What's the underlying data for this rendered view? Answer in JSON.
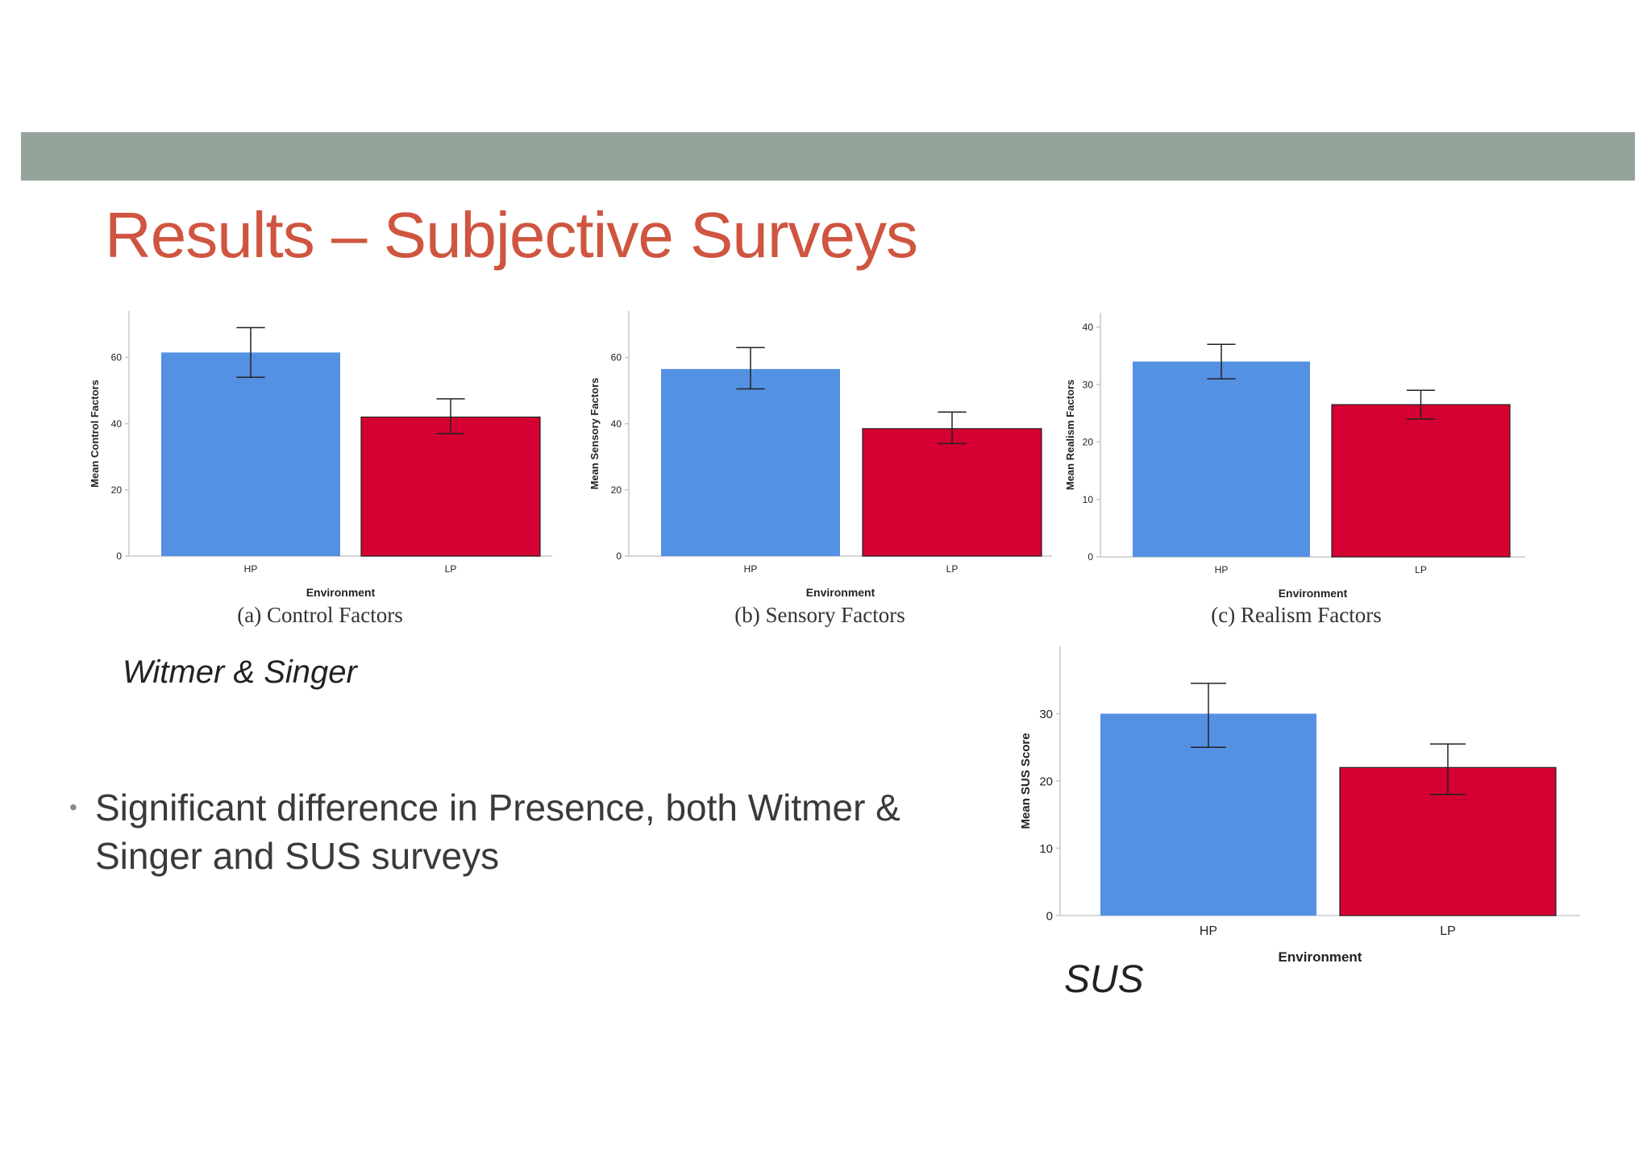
{
  "slide": {
    "title": "Results – Subjective Surveys",
    "ws_label": "Witmer & Singer",
    "sus_label": "SUS",
    "bullets": [
      "Significant difference in Presence, both Witmer & Singer and SUS surveys"
    ],
    "colors": {
      "title": "#cf5540",
      "top_bar": "#93a399",
      "hp": "#5591e3",
      "lp": "#d50032"
    }
  },
  "chart_data": [
    {
      "type": "bar",
      "caption": "(a) Control Factors",
      "categories": [
        "HP",
        "LP"
      ],
      "values": [
        61.5,
        42
      ],
      "error_low": [
        54,
        37
      ],
      "error_high": [
        69,
        47.5
      ],
      "xlabel": "Environment",
      "ylabel": "Mean Control Factors",
      "ylim": [
        0,
        74
      ],
      "yticks": [
        "0",
        "20",
        "40",
        "60"
      ]
    },
    {
      "type": "bar",
      "caption": "(b) Sensory Factors",
      "categories": [
        "HP",
        "LP"
      ],
      "values": [
        56.5,
        38.5
      ],
      "error_low": [
        50.5,
        34
      ],
      "error_high": [
        63,
        43.5
      ],
      "xlabel": "Environment",
      "ylabel": "Mean Sensory Factors",
      "ylim": [
        0,
        74
      ],
      "yticks": [
        "0",
        "20",
        "40",
        "60"
      ]
    },
    {
      "type": "bar",
      "caption": "(c) Realism Factors",
      "categories": [
        "HP",
        "LP"
      ],
      "values": [
        34,
        26.5
      ],
      "error_low": [
        31,
        24
      ],
      "error_high": [
        37,
        29
      ],
      "xlabel": "Environment",
      "ylabel": "Mean Realism Factors",
      "ylim": [
        0,
        42.5
      ],
      "yticks": [
        "0",
        "10",
        "20",
        "30",
        "40"
      ]
    },
    {
      "type": "bar",
      "caption": "",
      "categories": [
        "HP",
        "LP"
      ],
      "values": [
        30,
        22
      ],
      "error_low": [
        25,
        18
      ],
      "error_high": [
        34.5,
        25.5
      ],
      "xlabel": "Environment",
      "ylabel": "Mean SUS Score",
      "ylim": [
        0,
        40
      ],
      "yticks": [
        "0",
        "10",
        "20",
        "30"
      ]
    }
  ]
}
